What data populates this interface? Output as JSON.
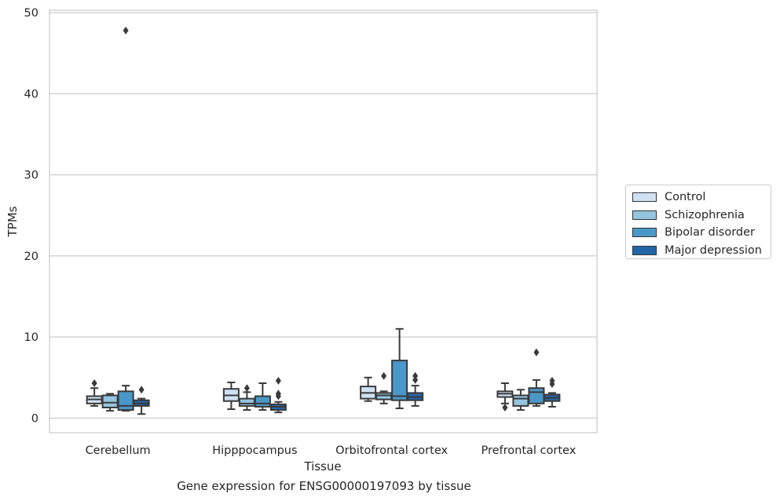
{
  "chart_data": {
    "type": "box",
    "title": "",
    "xlabel": "Tissue",
    "ylabel": "TPMs",
    "caption": "Gene expression for ENSG00000197093 by tissue",
    "ylim": [
      -1.8,
      50.3
    ],
    "yticks": [
      0,
      10,
      20,
      30,
      40,
      50
    ],
    "grid": "horizontal",
    "legend_position": "right",
    "categories": [
      "Cerebellum",
      "Hipppocampus",
      "Orbitofrontal cortex",
      "Prefrontal cortex"
    ],
    "series": [
      {
        "name": "Control",
        "color": "#d0e1f2",
        "boxes": [
          {
            "min": 1.5,
            "q1": 1.8,
            "median": 2.3,
            "q3": 2.7,
            "max": 3.7,
            "outliers": [
              4.3
            ]
          },
          {
            "min": 1.1,
            "q1": 2.1,
            "median": 2.8,
            "q3": 3.6,
            "max": 4.4,
            "outliers": []
          },
          {
            "min": 2.1,
            "q1": 2.4,
            "median": 3.1,
            "q3": 3.9,
            "max": 5.0,
            "outliers": []
          },
          {
            "min": 1.8,
            "q1": 2.6,
            "median": 3.0,
            "q3": 3.3,
            "max": 4.3,
            "outliers": [
              1.3
            ]
          }
        ]
      },
      {
        "name": "Schizophrenia",
        "color": "#94c4df",
        "boxes": [
          {
            "min": 0.9,
            "q1": 1.3,
            "median": 1.9,
            "q3": 2.8,
            "max": 3.0,
            "outliers": []
          },
          {
            "min": 1.0,
            "q1": 1.5,
            "median": 1.8,
            "q3": 2.4,
            "max": 3.2,
            "outliers": [
              3.7
            ]
          },
          {
            "min": 1.8,
            "q1": 2.3,
            "median": 2.8,
            "q3": 3.1,
            "max": 3.3,
            "outliers": [
              5.2
            ]
          },
          {
            "min": 1.0,
            "q1": 1.5,
            "median": 2.4,
            "q3": 2.8,
            "max": 3.5,
            "outliers": []
          }
        ]
      },
      {
        "name": "Bipolar disorder",
        "color": "#4a98c9",
        "boxes": [
          {
            "min": 0.9,
            "q1": 1.0,
            "median": 1.5,
            "q3": 3.3,
            "max": 4.0,
            "outliers": [
              47.8
            ]
          },
          {
            "min": 1.0,
            "q1": 1.4,
            "median": 1.8,
            "q3": 2.7,
            "max": 4.3,
            "outliers": []
          },
          {
            "min": 1.2,
            "q1": 2.2,
            "median": 2.7,
            "q3": 7.1,
            "max": 11.0,
            "outliers": []
          },
          {
            "min": 1.5,
            "q1": 1.8,
            "median": 3.2,
            "q3": 3.7,
            "max": 4.7,
            "outliers": [
              8.1
            ]
          }
        ]
      },
      {
        "name": "Major depression",
        "color": "#2366a8",
        "boxes": [
          {
            "min": 0.5,
            "q1": 1.5,
            "median": 1.8,
            "q3": 2.2,
            "max": 2.4,
            "outliers": [
              3.5
            ]
          },
          {
            "min": 0.7,
            "q1": 1.0,
            "median": 1.4,
            "q3": 1.7,
            "max": 2.0,
            "outliers": [
              4.6,
              3.0,
              2.7
            ]
          },
          {
            "min": 1.5,
            "q1": 2.2,
            "median": 2.6,
            "q3": 3.1,
            "max": 4.0,
            "outliers": [
              5.2,
              4.7
            ]
          },
          {
            "min": 1.4,
            "q1": 2.1,
            "median": 2.5,
            "q3": 2.9,
            "max": 3.1,
            "outliers": [
              4.6,
              4.2
            ]
          }
        ]
      }
    ]
  }
}
